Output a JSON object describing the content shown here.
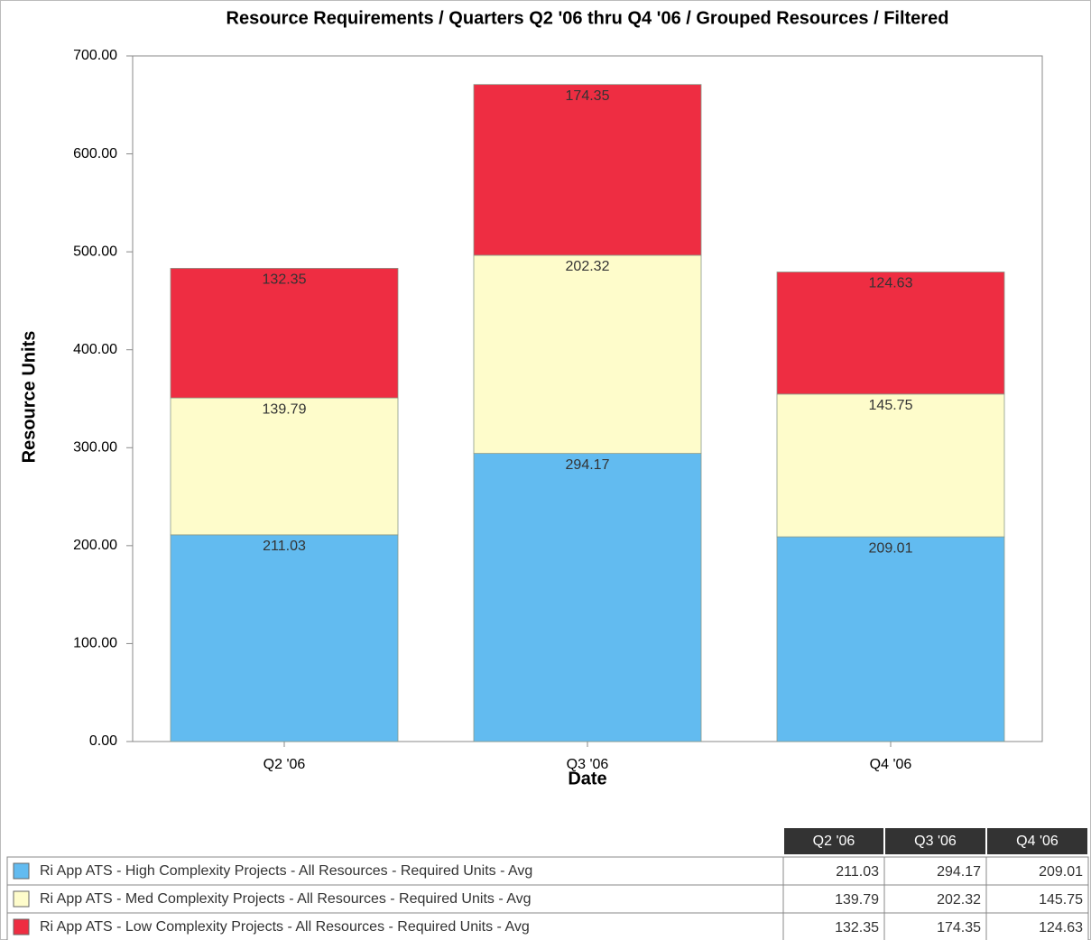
{
  "chart_data": {
    "type": "stacked_bar",
    "title": "Resource Requirements / Quarters Q2 '06 thru Q4 '06 / Grouped Resources / Filtered",
    "x_label": "Date",
    "y_label": "Resource Units",
    "categories": [
      "Q2 '06",
      "Q3 '06",
      "Q4 '06"
    ],
    "series": [
      {
        "name": "Ri App ATS - High Complexity Projects - All Resources - Required Units - Avg",
        "color": "#62bbf0",
        "values": [
          211.03,
          294.17,
          209.01
        ]
      },
      {
        "name": "Ri App ATS - Med Complexity Projects - All Resources - Required Units - Avg",
        "color": "#fefccb",
        "values": [
          139.79,
          202.32,
          145.75
        ]
      },
      {
        "name": "Ri App ATS - Low Complexity Projects - All Resources - Required Units - Avg",
        "color": "#ee2d42",
        "values": [
          132.35,
          174.35,
          124.63
        ]
      }
    ],
    "ylim": [
      0,
      700
    ],
    "yticks": [
      {
        "value": 0,
        "label": "0.00"
      },
      {
        "value": 100,
        "label": "100.00"
      },
      {
        "value": 200,
        "label": "200.00"
      },
      {
        "value": 300,
        "label": "300.00"
      },
      {
        "value": 400,
        "label": "400.00"
      },
      {
        "value": 500,
        "label": "500.00"
      },
      {
        "value": 600,
        "label": "600.00"
      },
      {
        "value": 700,
        "label": "700.00"
      }
    ]
  }
}
